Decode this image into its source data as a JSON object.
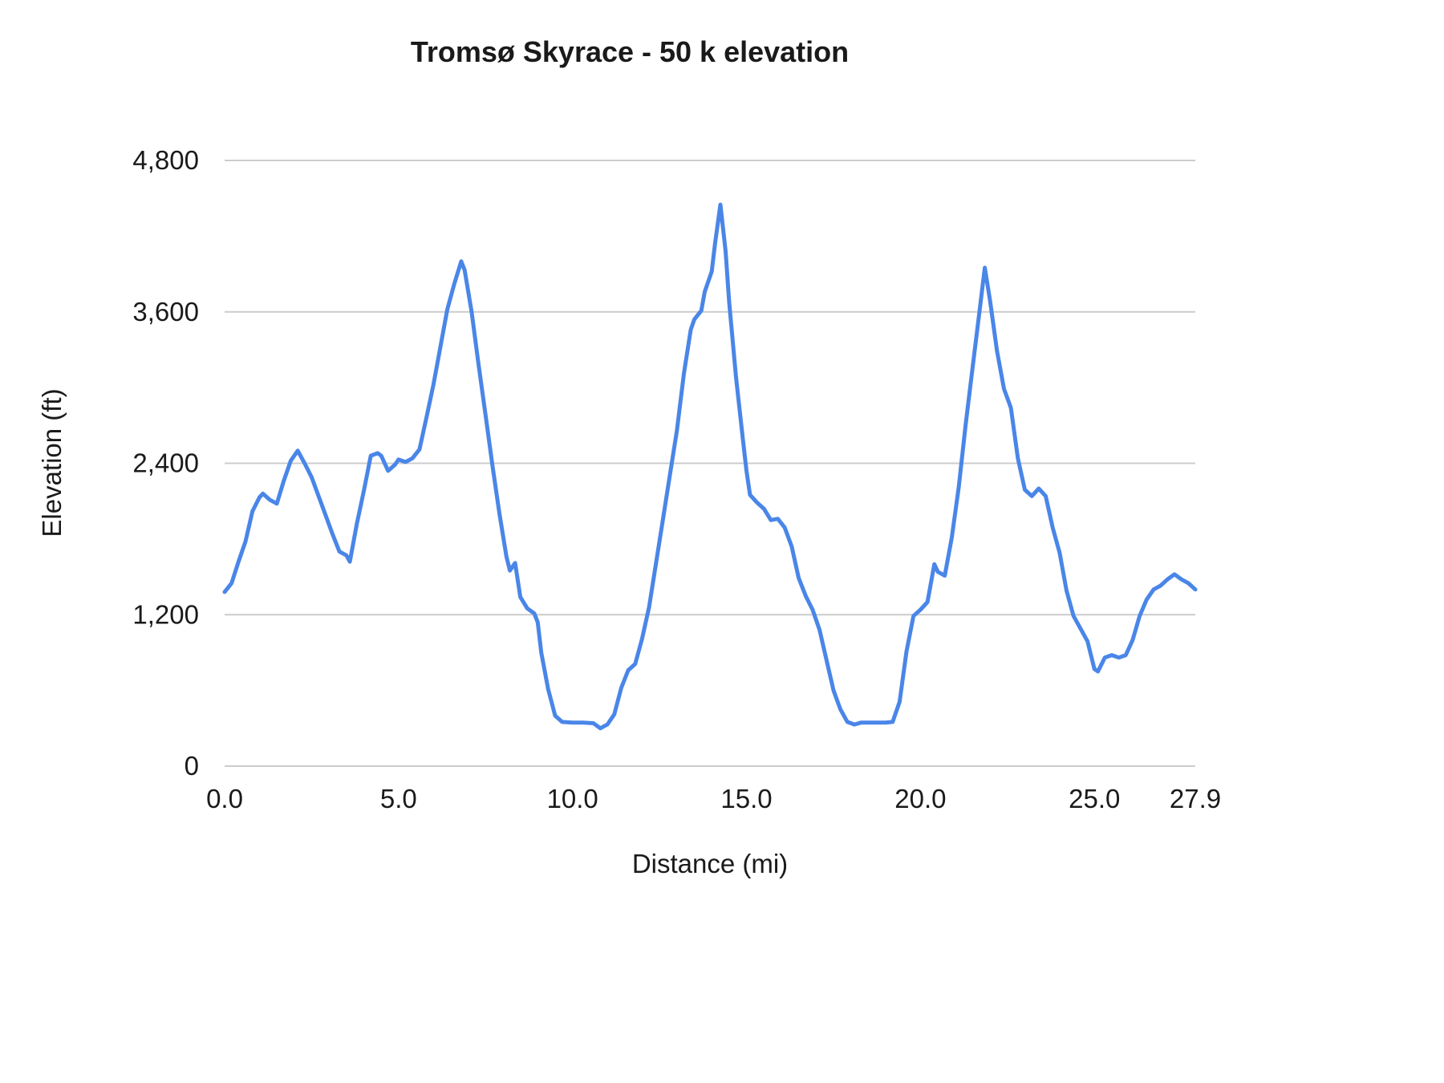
{
  "chart_data": {
    "type": "line",
    "title": "Tromsø Skyrace - 50 k elevation",
    "xlabel": "Distance (mi)",
    "ylabel": "Elevation (ft)",
    "xlim": [
      0,
      27.9
    ],
    "ylim": [
      0,
      4800
    ],
    "x_ticks": [
      0,
      5,
      10,
      15,
      20,
      25,
      27.9
    ],
    "x_tick_labels": [
      "0.0",
      "5.0",
      "10.0",
      "15.0",
      "20.0",
      "25.0",
      "27.9"
    ],
    "y_ticks": [
      0,
      1200,
      2400,
      3600,
      4800
    ],
    "y_tick_labels": [
      "0",
      "1,200",
      "2,400",
      "3,600",
      "4,800"
    ],
    "grid": true,
    "legend": "none",
    "line_color": "#4a86e8",
    "grid_color": "#cccccc",
    "text_color": "#1a1a1a",
    "x": [
      0.0,
      0.2,
      0.4,
      0.6,
      0.8,
      1.0,
      1.1,
      1.3,
      1.5,
      1.7,
      1.9,
      2.1,
      2.3,
      2.5,
      2.7,
      2.9,
      3.1,
      3.3,
      3.5,
      3.6,
      3.8,
      4.0,
      4.2,
      4.4,
      4.5,
      4.7,
      4.9,
      5.0,
      5.2,
      5.4,
      5.6,
      5.8,
      6.0,
      6.2,
      6.4,
      6.6,
      6.8,
      6.9,
      7.1,
      7.3,
      7.5,
      7.7,
      7.9,
      8.1,
      8.2,
      8.35,
      8.5,
      8.7,
      8.9,
      9.0,
      9.1,
      9.3,
      9.5,
      9.7,
      10.0,
      10.3,
      10.6,
      10.8,
      11.0,
      11.2,
      11.4,
      11.6,
      11.8,
      12.0,
      12.2,
      12.4,
      12.6,
      12.8,
      13.0,
      13.2,
      13.4,
      13.5,
      13.7,
      13.8,
      14.0,
      14.1,
      14.25,
      14.4,
      14.5,
      14.7,
      14.9,
      15.0,
      15.1,
      15.3,
      15.5,
      15.7,
      15.9,
      16.1,
      16.3,
      16.5,
      16.7,
      16.9,
      17.1,
      17.3,
      17.5,
      17.7,
      17.9,
      18.1,
      18.3,
      18.5,
      18.8,
      19.0,
      19.2,
      19.4,
      19.6,
      19.8,
      20.0,
      20.2,
      20.4,
      20.5,
      20.7,
      20.9,
      21.1,
      21.3,
      21.5,
      21.7,
      21.85,
      22.0,
      22.2,
      22.4,
      22.6,
      22.8,
      23.0,
      23.2,
      23.4,
      23.6,
      23.8,
      24.0,
      24.2,
      24.4,
      24.6,
      24.8,
      25.0,
      25.1,
      25.3,
      25.5,
      25.7,
      25.9,
      26.1,
      26.3,
      26.5,
      26.7,
      26.9,
      27.1,
      27.3,
      27.5,
      27.7,
      27.9
    ],
    "y": [
      1380,
      1450,
      1620,
      1780,
      2020,
      2130,
      2160,
      2110,
      2080,
      2260,
      2420,
      2500,
      2400,
      2290,
      2140,
      1990,
      1840,
      1700,
      1670,
      1620,
      1920,
      2180,
      2460,
      2480,
      2460,
      2340,
      2390,
      2430,
      2410,
      2440,
      2510,
      2760,
      3020,
      3320,
      3620,
      3820,
      4000,
      3930,
      3600,
      3180,
      2780,
      2380,
      2000,
      1660,
      1550,
      1610,
      1340,
      1250,
      1210,
      1140,
      900,
      610,
      400,
      350,
      345,
      345,
      340,
      300,
      330,
      410,
      620,
      760,
      810,
      1010,
      1260,
      1610,
      1960,
      2310,
      2660,
      3110,
      3460,
      3540,
      3610,
      3760,
      3920,
      4150,
      4450,
      4080,
      3680,
      3080,
      2580,
      2340,
      2150,
      2090,
      2040,
      1950,
      1960,
      1890,
      1740,
      1490,
      1350,
      1240,
      1080,
      840,
      600,
      450,
      350,
      330,
      345,
      345,
      345,
      345,
      350,
      510,
      910,
      1190,
      1240,
      1300,
      1600,
      1540,
      1510,
      1810,
      2210,
      2710,
      3160,
      3610,
      3950,
      3690,
      3290,
      2990,
      2840,
      2440,
      2190,
      2140,
      2200,
      2140,
      1890,
      1690,
      1390,
      1190,
      1090,
      990,
      770,
      750,
      860,
      880,
      860,
      880,
      1000,
      1190,
      1320,
      1400,
      1430,
      1480,
      1520,
      1480,
      1450,
      1400
    ]
  }
}
